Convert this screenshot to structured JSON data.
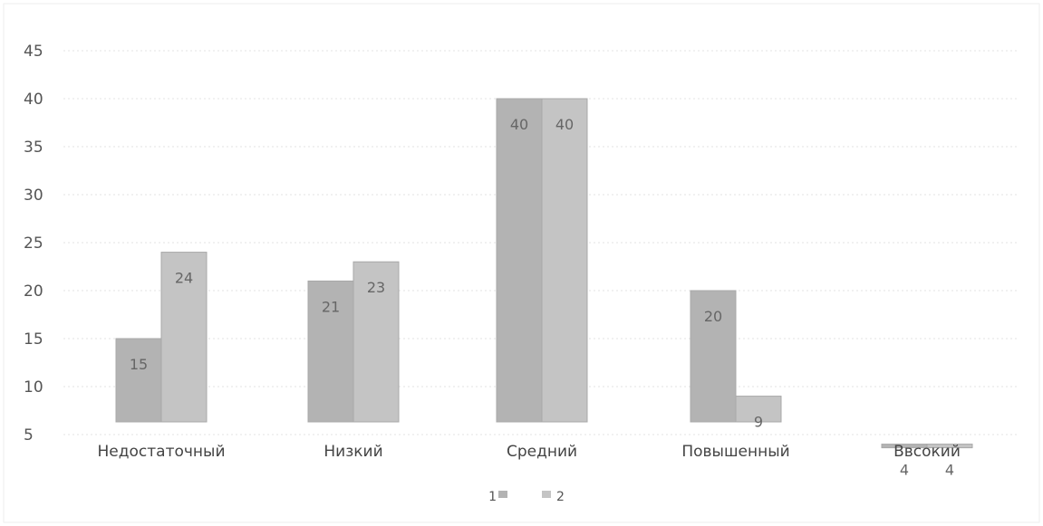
{
  "chart_data": {
    "type": "bar",
    "title": "",
    "xlabel": "",
    "ylabel": "",
    "categories": [
      "Недостаточный",
      "Низкий",
      "Средний",
      "Повышенный",
      "Ввсокий"
    ],
    "series": [
      {
        "name": "1",
        "values": [
          15,
          21,
          40,
          20,
          4
        ],
        "color": "#b3b3b3"
      },
      {
        "name": "2",
        "values": [
          24,
          23,
          40,
          9,
          4
        ],
        "color": "#c4c4c4"
      }
    ],
    "y_ticks": [
      "5",
      "10",
      "15",
      "20",
      "25",
      "30",
      "35",
      "40",
      "45"
    ],
    "ylim": [
      5,
      45
    ],
    "grid": true,
    "legend": "bottom"
  }
}
